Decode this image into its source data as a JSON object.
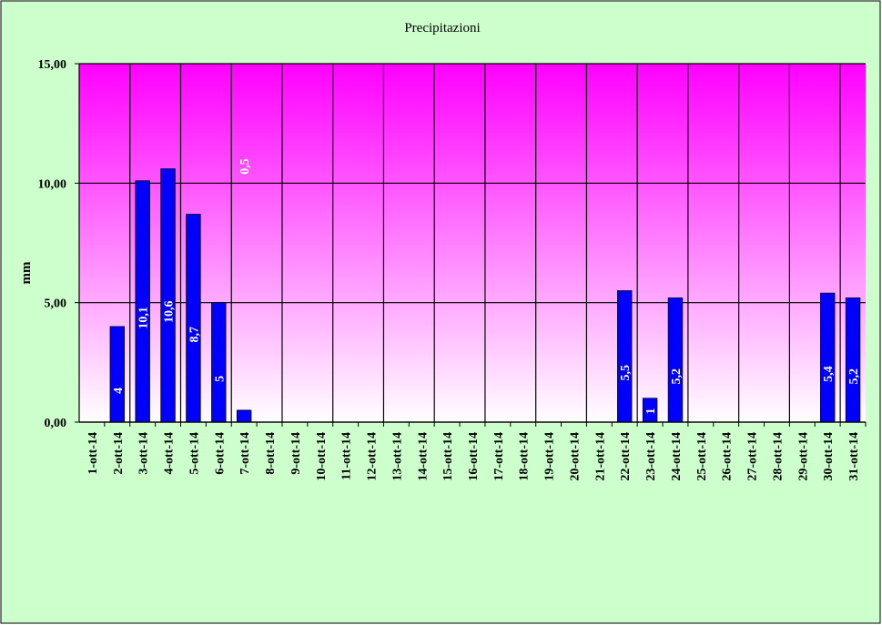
{
  "chart_data": {
    "type": "bar",
    "title": "Precipitazioni",
    "ylabel": "mm",
    "xlabel": "",
    "ylim": [
      0,
      15
    ],
    "yticks": [
      "0,00",
      "5,00",
      "10,00",
      "15,00"
    ],
    "ytick_values": [
      0,
      5,
      10,
      15
    ],
    "grid": true,
    "categories": [
      "1-ott-14",
      "2-ott-14",
      "3-ott-14",
      "4-ott-14",
      "5-ott-14",
      "6-ott-14",
      "7-ott-14",
      "8-ott-14",
      "9-ott-14",
      "10-ott-14",
      "11-ott-14",
      "12-ott-14",
      "13-ott-14",
      "14-ott-14",
      "15-ott-14",
      "16-ott-14",
      "17-ott-14",
      "18-ott-14",
      "19-ott-14",
      "20-ott-14",
      "21-ott-14",
      "22-ott-14",
      "23-ott-14",
      "24-ott-14",
      "25-ott-14",
      "26-ott-14",
      "27-ott-14",
      "28-ott-14",
      "29-ott-14",
      "30-ott-14",
      "31-ott-14"
    ],
    "values": [
      0,
      4,
      10.1,
      10.6,
      8.7,
      5,
      0.5,
      0,
      0,
      0,
      0,
      0,
      0,
      0,
      0,
      0,
      0,
      0,
      0,
      0,
      0,
      5.5,
      1,
      5.2,
      0,
      0,
      0,
      0,
      0,
      5.4,
      5.2
    ],
    "data_labels": [
      "",
      "4",
      "10,1",
      "10,6",
      "8,7",
      "5",
      "0,5",
      "",
      "",
      "",
      "",
      "",
      "",
      "",
      "",
      "",
      "",
      "",
      "",
      "",
      "",
      "5,5",
      "1",
      "5,2",
      "",
      "",
      "",
      "",
      "",
      "5,4",
      "5,2"
    ],
    "colors": {
      "bar": "#0000ff",
      "background": "#ccffcc",
      "plot_top": "#ff00ff",
      "plot_bottom": "#ffffff",
      "grid": "#000000",
      "data_label": "#ffffff"
    }
  }
}
